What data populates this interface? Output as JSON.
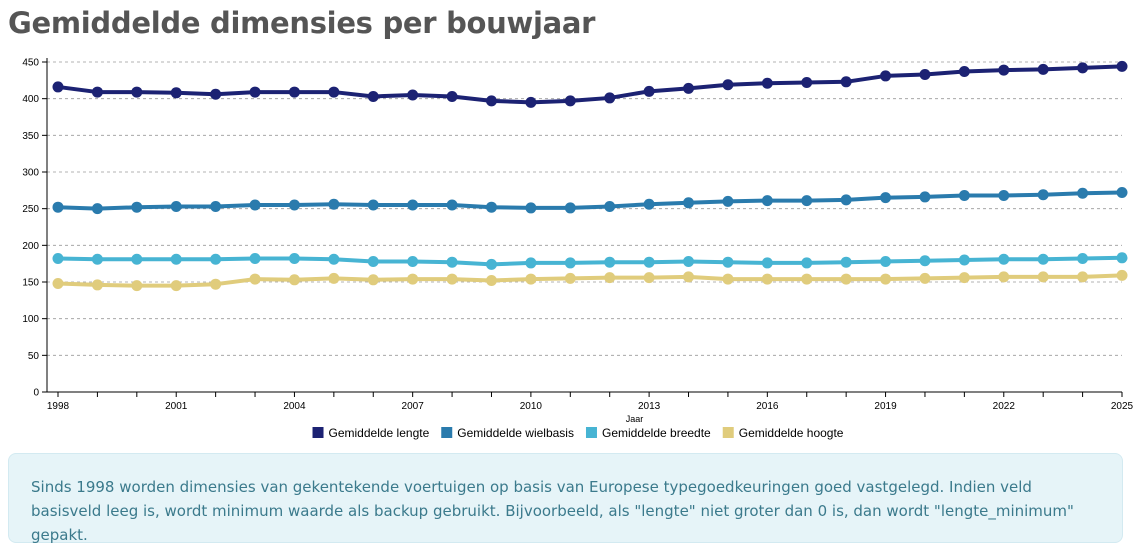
{
  "page": {
    "title": "Gemiddelde dimensies per bouwjaar",
    "info_text": "Sinds 1998 worden dimensies van gekentekende voertuigen op basis van Europese typegoedkeuringen goed vastgelegd. Indien veld basisveld leeg is, wordt minimum waarde als backup gebruikt. Bijvoorbeeld, als \"lengte\" niet groter dan 0 is, dan wordt \"lengte_minimum\" gepakt.",
    "info_bg_color": "#e6f4f8",
    "info_text_color": "#3b7a8c"
  },
  "chart_data": {
    "type": "line",
    "xlabel": "Jaar",
    "ylabel": "",
    "xlim": [
      1998,
      2025
    ],
    "ylim": [
      0,
      450
    ],
    "x_ticks": [
      1998,
      2001,
      2004,
      2007,
      2010,
      2013,
      2016,
      2019,
      2022,
      2025
    ],
    "y_ticks": [
      0,
      50,
      100,
      150,
      200,
      250,
      300,
      350,
      400,
      450
    ],
    "grid": "horizontal-dashed",
    "legend_position": "bottom-center",
    "x": [
      1998,
      1999,
      2000,
      2001,
      2002,
      2003,
      2004,
      2005,
      2006,
      2007,
      2008,
      2009,
      2010,
      2011,
      2012,
      2013,
      2014,
      2015,
      2016,
      2017,
      2018,
      2019,
      2020,
      2021,
      2022,
      2023,
      2024,
      2025
    ],
    "series": [
      {
        "name": "Gemiddelde lengte",
        "color": "#1c2273",
        "values": [
          416,
          409,
          409,
          408,
          406,
          409,
          409,
          409,
          403,
          405,
          403,
          397,
          395,
          397,
          401,
          410,
          414,
          419,
          421,
          422,
          423,
          431,
          433,
          437,
          439,
          440,
          442,
          444
        ]
      },
      {
        "name": "Gemiddelde wielbasis",
        "color": "#2a7bad",
        "values": [
          252,
          250,
          252,
          253,
          253,
          255,
          255,
          256,
          255,
          255,
          255,
          252,
          251,
          251,
          253,
          256,
          258,
          260,
          261,
          261,
          262,
          265,
          266,
          268,
          268,
          269,
          271,
          272
        ]
      },
      {
        "name": "Gemiddelde breedte",
        "color": "#47b4d3",
        "values": [
          182,
          181,
          181,
          181,
          181,
          182,
          182,
          181,
          178,
          178,
          177,
          174,
          176,
          176,
          177,
          177,
          178,
          177,
          176,
          176,
          177,
          178,
          179,
          180,
          181,
          181,
          182,
          183
        ]
      },
      {
        "name": "Gemiddelde hoogte",
        "color": "#e0cc7c",
        "values": [
          148,
          146,
          145,
          145,
          147,
          154,
          153,
          155,
          153,
          154,
          154,
          152,
          154,
          155,
          156,
          156,
          157,
          154,
          154,
          154,
          154,
          154,
          155,
          156,
          157,
          157,
          157,
          159
        ]
      }
    ]
  }
}
